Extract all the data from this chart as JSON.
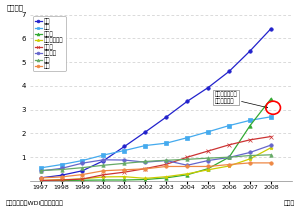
{
  "ylabel": "（億件）",
  "xlabel_note": "資料：世銀「WDI」から作成。",
  "year_label": "（年）",
  "years": [
    1997,
    1998,
    1999,
    2000,
    2001,
    2002,
    2003,
    2004,
    2005,
    2006,
    2007,
    2008
  ],
  "series": [
    {
      "name": "中国",
      "color": "#2222cc",
      "marker": "o",
      "values": [
        0.13,
        0.24,
        0.43,
        0.85,
        1.45,
        2.06,
        2.69,
        3.35,
        3.93,
        4.61,
        5.47,
        6.41
      ]
    },
    {
      "name": "米国",
      "color": "#44aaee",
      "marker": "s",
      "values": [
        0.55,
        0.69,
        0.86,
        1.09,
        1.28,
        1.49,
        1.59,
        1.82,
        2.07,
        2.33,
        2.55,
        2.7
      ]
    },
    {
      "name": "インド",
      "color": "#33aa33",
      "marker": "^",
      "values": [
        0.01,
        0.02,
        0.03,
        0.04,
        0.04,
        0.06,
        0.13,
        0.26,
        0.52,
        1.0,
        2.33,
        3.46
      ]
    },
    {
      "name": "インドネシア",
      "color": "#cccc00",
      "marker": "*",
      "values": [
        0.02,
        0.05,
        0.09,
        0.17,
        0.18,
        0.11,
        0.18,
        0.3,
        0.47,
        0.63,
        0.93,
        1.4
      ]
    },
    {
      "name": "ロシア",
      "color": "#cc3333",
      "marker": "x",
      "values": [
        0.02,
        0.04,
        0.08,
        0.26,
        0.37,
        0.52,
        0.7,
        1.0,
        1.26,
        1.52,
        1.73,
        1.87
      ]
    },
    {
      "name": "ブラジル",
      "color": "#6666cc",
      "marker": "o",
      "values": [
        0.42,
        0.53,
        0.75,
        0.89,
        0.88,
        0.79,
        0.86,
        0.66,
        0.86,
        0.99,
        1.2,
        1.51
      ]
    },
    {
      "name": "日本",
      "color": "#66aa66",
      "marker": "^",
      "values": [
        0.44,
        0.48,
        0.56,
        0.66,
        0.74,
        0.82,
        0.87,
        0.91,
        0.96,
        1.0,
        1.07,
        1.1
      ]
    },
    {
      "name": "英国",
      "color": "#ee8844",
      "marker": "o",
      "values": [
        0.13,
        0.17,
        0.27,
        0.43,
        0.47,
        0.51,
        0.61,
        0.61,
        0.61,
        0.69,
        0.76,
        0.76
      ]
    }
  ],
  "ylim": [
    0,
    7
  ],
  "yticks": [
    0,
    1,
    2,
    3,
    4,
    5,
    6,
    7
  ],
  "annotation_text": "インドが米国を\n抜いている。"
}
